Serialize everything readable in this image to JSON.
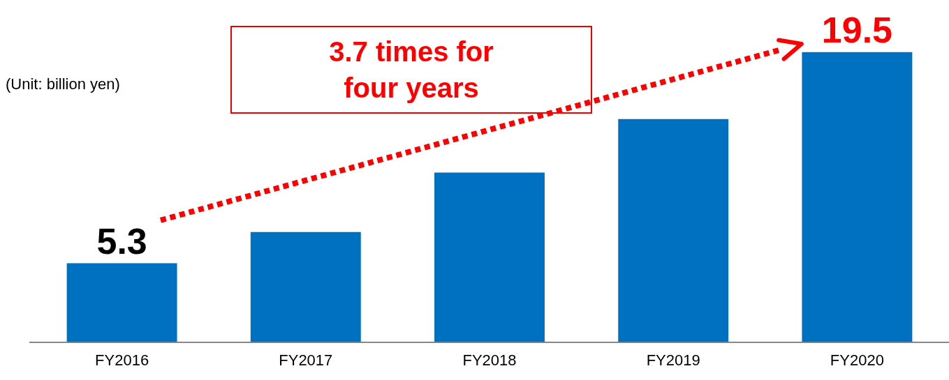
{
  "chart_data": {
    "type": "bar",
    "categories": [
      "FY2016",
      "FY2017",
      "FY2018",
      "FY2019",
      "FY2020"
    ],
    "values": [
      5.3,
      7.4,
      11.4,
      15.0,
      19.5
    ],
    "color": "#0070c0",
    "value_labels": [
      "5.3",
      null,
      null,
      null,
      "19.5"
    ],
    "tick_labels": "x",
    "grid": false,
    "legend": false,
    "annotations": [
      "(Unit: billion yen)",
      "3.7 times for four years"
    ]
  }
}
